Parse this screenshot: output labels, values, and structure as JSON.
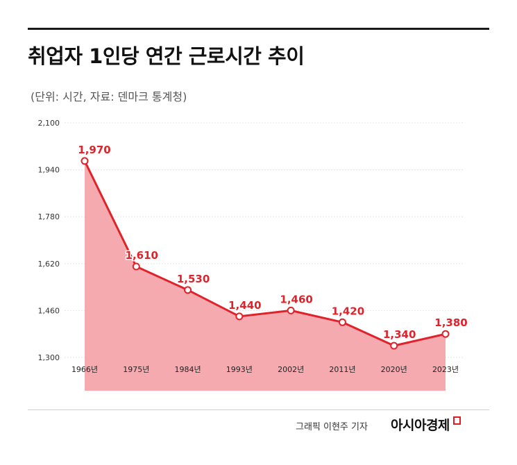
{
  "header": {
    "title": "취업자 1인당 연간 근로시간 추이",
    "subtitle": "(단위: 시간, 자료: 덴마크 통계청)"
  },
  "footer": {
    "credit": "그래픽  이현주 기자",
    "brand": "아시아경제"
  },
  "colors": {
    "line": "#e0222b",
    "area": "#f5aab0",
    "grid": "#e6e6e6"
  },
  "chart_data": {
    "type": "area",
    "categories": [
      "1966년",
      "1975년",
      "1984년",
      "1993년",
      "2002년",
      "2011년",
      "2020년",
      "2023년"
    ],
    "values": [
      1970,
      1610,
      1530,
      1440,
      1460,
      1420,
      1340,
      1380
    ],
    "data_labels": [
      "1,970",
      "1,610",
      "1,530",
      "1,440",
      "1,460",
      "1,420",
      "1,340",
      "1,380"
    ],
    "yticks": [
      "2,100",
      "1,940",
      "1,780",
      "1,620",
      "1,460",
      "1,300"
    ],
    "ytick_values": [
      2100,
      1940,
      1780,
      1620,
      1460,
      1300
    ],
    "ylim": [
      1300,
      2100
    ],
    "grid": true
  }
}
